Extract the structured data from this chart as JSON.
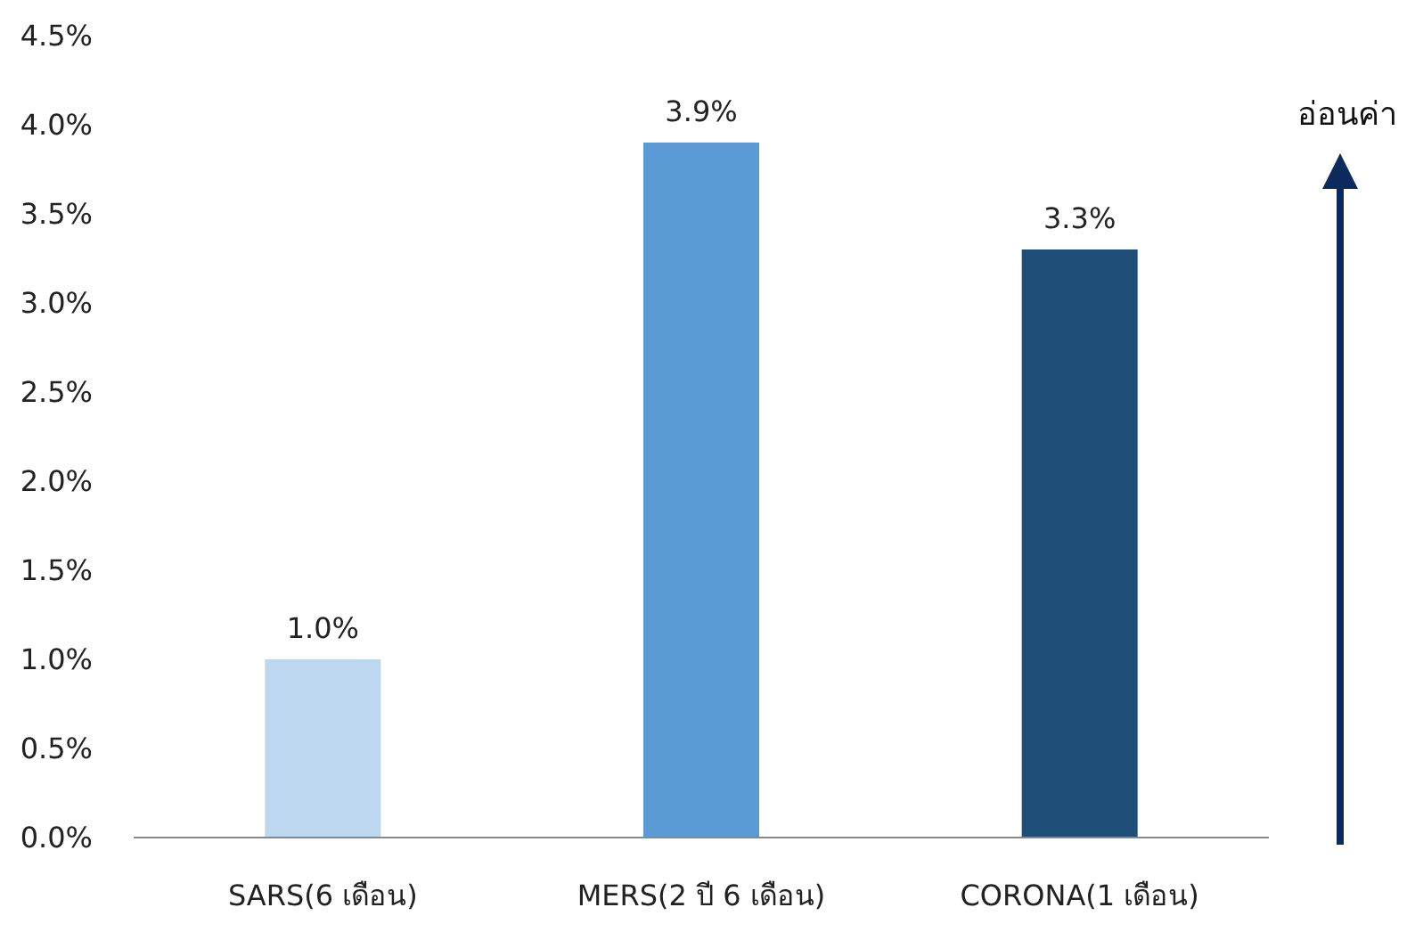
{
  "chart_data": {
    "type": "bar",
    "categories": [
      "SARS(6 เดือน)",
      "MERS(2 ปี 6 เดือน)",
      "CORONA(1 เดือน)"
    ],
    "values": [
      1.0,
      3.9,
      3.3
    ],
    "colors": [
      "#bdd7ee",
      "#5b9bd5",
      "#1f4e79"
    ],
    "value_labels": [
      "1.0%",
      "3.9%",
      "3.3%"
    ],
    "ylim": [
      0,
      4.5
    ],
    "yticks": [
      {
        "value": 0,
        "label": "0.0%"
      },
      {
        "value": 0.5,
        "label": "0.5%"
      },
      {
        "value": 1,
        "label": "1.0%"
      },
      {
        "value": 1.5,
        "label": "1.5%"
      },
      {
        "value": 2,
        "label": "2.0%"
      },
      {
        "value": 2.5,
        "label": "2.5%"
      },
      {
        "value": 3,
        "label": "3.0%"
      },
      {
        "value": 3.5,
        "label": "3.5%"
      },
      {
        "value": 4,
        "label": "4.0%"
      },
      {
        "value": 4.5,
        "label": "4.5%"
      }
    ],
    "grid": false,
    "annotations": [
      "อ่อนค่า"
    ]
  }
}
